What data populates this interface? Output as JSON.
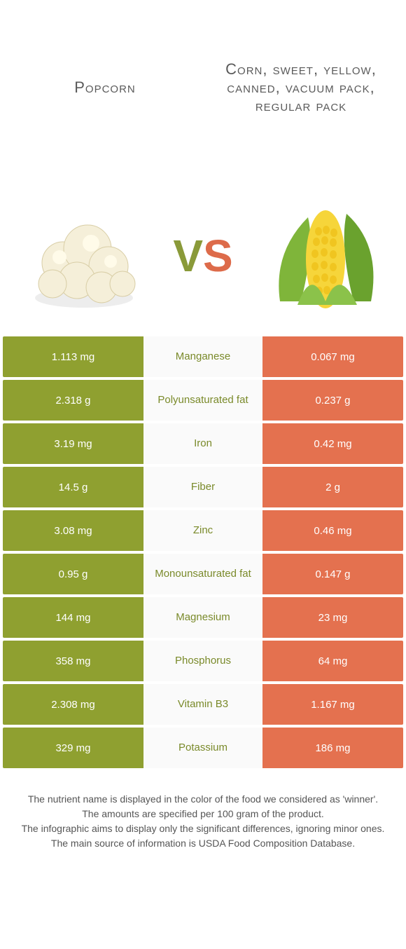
{
  "colors": {
    "left": "#8fa030",
    "right": "#e4714f",
    "leftLabel": "#7a8a2a",
    "rightLabel": "#dd6b4a"
  },
  "titles": {
    "left": "Popcorn",
    "right": "Corn, sweet, yellow, canned, vacuum pack, regular pack"
  },
  "vs": {
    "v": "V",
    "s": "S"
  },
  "rows": [
    {
      "left": "1.113 mg",
      "label": "Manganese",
      "right": "0.067 mg",
      "winner": "left"
    },
    {
      "left": "2.318 g",
      "label": "Polyunsaturated fat",
      "right": "0.237 g",
      "winner": "left"
    },
    {
      "left": "3.19 mg",
      "label": "Iron",
      "right": "0.42 mg",
      "winner": "left"
    },
    {
      "left": "14.5 g",
      "label": "Fiber",
      "right": "2 g",
      "winner": "left"
    },
    {
      "left": "3.08 mg",
      "label": "Zinc",
      "right": "0.46 mg",
      "winner": "left"
    },
    {
      "left": "0.95 g",
      "label": "Monounsaturated fat",
      "right": "0.147 g",
      "winner": "left"
    },
    {
      "left": "144 mg",
      "label": "Magnesium",
      "right": "23 mg",
      "winner": "left"
    },
    {
      "left": "358 mg",
      "label": "Phosphorus",
      "right": "64 mg",
      "winner": "left"
    },
    {
      "left": "2.308 mg",
      "label": "Vitamin B3",
      "right": "1.167 mg",
      "winner": "left"
    },
    {
      "left": "329 mg",
      "label": "Potassium",
      "right": "186 mg",
      "winner": "left"
    }
  ],
  "footer": {
    "line1": "The nutrient name is displayed in the color of the food we considered as 'winner'.",
    "line2": "The amounts are specified per 100 gram of the product.",
    "line3": "The infographic aims to display only the significant differences, ignoring minor ones.",
    "line4": "The main source of information is USDA Food Composition Database."
  }
}
